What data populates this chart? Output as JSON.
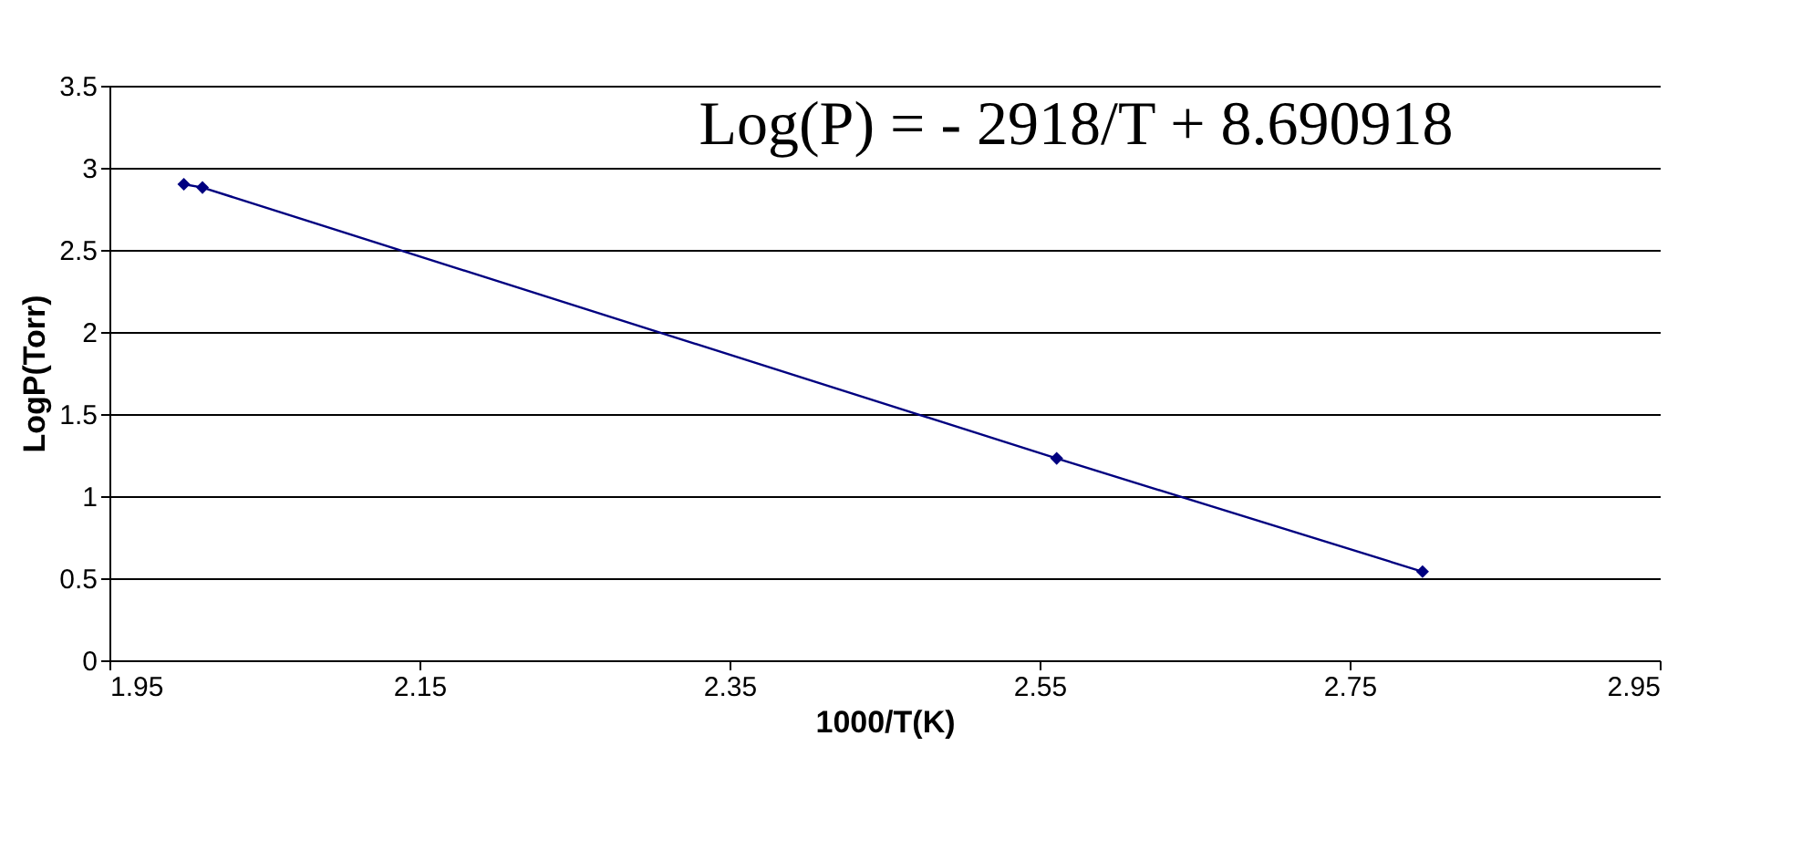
{
  "chart_data": {
    "type": "line",
    "xlabel": "1000/T(K)",
    "ylabel": "LogP(Torr)",
    "annotations": [
      "Log(P) = - 2918/T + 8.690918"
    ],
    "x": [
      1.998,
      2.01,
      2.561,
      2.797
    ],
    "series": [
      {
        "color": "#000080",
        "values": [
          2.9,
          2.88,
          1.23,
          0.54
        ]
      }
    ],
    "xlim": [
      1.95,
      2.95
    ],
    "xticks": [
      1.95,
      2.15,
      2.35,
      2.55,
      2.75,
      2.95
    ],
    "ylim": [
      0,
      3.5
    ],
    "yticks": [
      0,
      0.5,
      1,
      1.5,
      2,
      2.5,
      3,
      3.5
    ],
    "grid": "y",
    "marker": "diamond",
    "line_style": "solid"
  }
}
